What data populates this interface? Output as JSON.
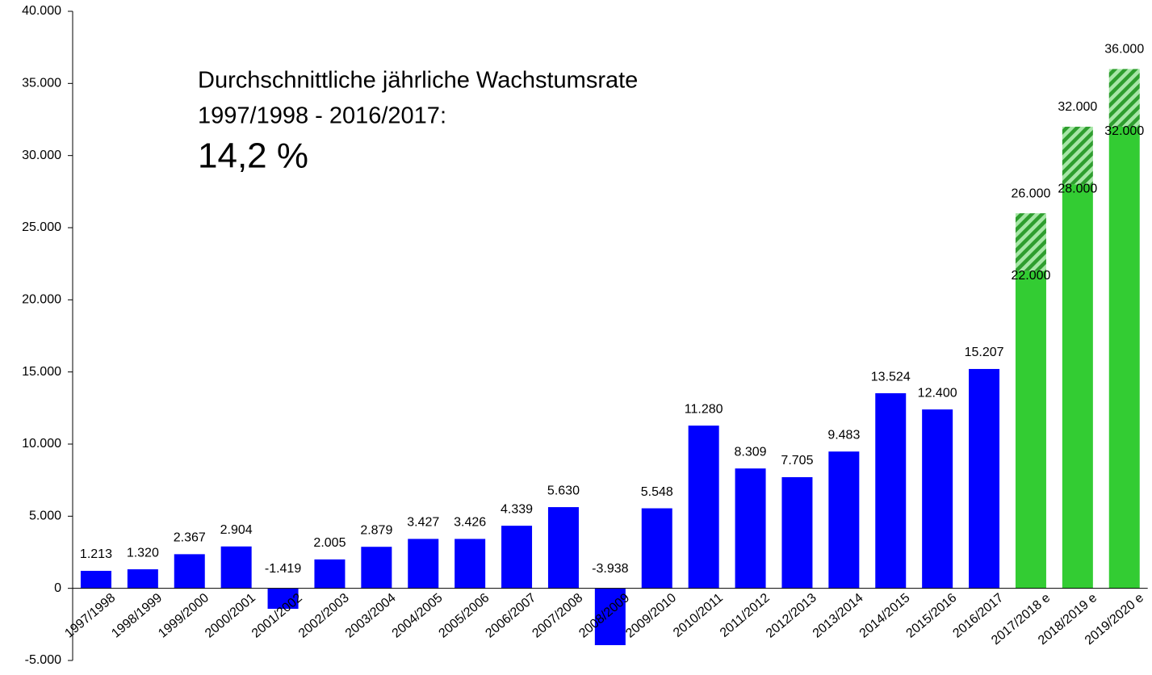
{
  "chart_data": {
    "type": "bar",
    "annotation": [
      "Durchschnittliche jährliche Wachstumsrate",
      "1997/1998 - 2016/2017:",
      "14,2 %"
    ],
    "categories": [
      "1997/1998",
      "1998/1999",
      "1999/2000",
      "2000/2001",
      "2001/2002",
      "2002/2003",
      "2003/2004",
      "2004/2005",
      "2005/2006",
      "2006/2007",
      "2007/2008",
      "2008/2009",
      "2009/2010",
      "2010/2011",
      "2011/2012",
      "2012/2013",
      "2013/2014",
      "2014/2015",
      "2015/2016",
      "2016/2017",
      "2017/2018 e",
      "2018/2019 e",
      "2019/2020 e"
    ],
    "series": [
      {
        "color": "#0000ff",
        "values": [
          1213,
          1320,
          2367,
          2904,
          -1419,
          2005,
          2879,
          3427,
          3426,
          4339,
          5630,
          -3938,
          5548,
          11280,
          8309,
          7705,
          9483,
          13524,
          12400,
          15207,
          null,
          null,
          null
        ],
        "value_labels": [
          "1.213",
          "1.320",
          "2.367",
          "2.904",
          "-1.419",
          "2.005",
          "2.879",
          "3.427",
          "3.426",
          "4.339",
          "5.630",
          "-3.938",
          "5.548",
          "11.280",
          "8.309",
          "7.705",
          "9.483",
          "13.524",
          "12.400",
          "15.207",
          null,
          null,
          null
        ]
      },
      {
        "color": "#33cc33",
        "values": [
          null,
          null,
          null,
          null,
          null,
          null,
          null,
          null,
          null,
          null,
          null,
          null,
          null,
          null,
          null,
          null,
          null,
          null,
          null,
          null,
          22000,
          28000,
          32000
        ],
        "value_labels": [
          null,
          null,
          null,
          null,
          null,
          null,
          null,
          null,
          null,
          null,
          null,
          null,
          null,
          null,
          null,
          null,
          null,
          null,
          null,
          null,
          "22.000",
          "28.000",
          "32.000"
        ],
        "high": [
          null,
          null,
          null,
          null,
          null,
          null,
          null,
          null,
          null,
          null,
          null,
          null,
          null,
          null,
          null,
          null,
          null,
          null,
          null,
          null,
          26000,
          32000,
          36000
        ],
        "high_labels": [
          null,
          null,
          null,
          null,
          null,
          null,
          null,
          null,
          null,
          null,
          null,
          null,
          null,
          null,
          null,
          null,
          null,
          null,
          null,
          null,
          "26.000",
          "32.000",
          "36.000"
        ]
      }
    ],
    "ylim": [
      -5000,
      40000
    ],
    "yticks": [
      {
        "value": -5000,
        "label": "-5.000"
      },
      0,
      {
        "value": 5000,
        "label": "5.000"
      },
      {
        "value": 10000,
        "label": "10.000"
      },
      {
        "value": 15000,
        "label": "15.000"
      },
      {
        "value": 20000,
        "label": "20.000"
      },
      {
        "value": 25000,
        "label": "25.000"
      },
      {
        "value": 30000,
        "label": "30.000"
      },
      {
        "value": 35000,
        "label": "35.000"
      },
      {
        "value": 40000,
        "label": "40.000"
      }
    ],
    "grid": false
  }
}
